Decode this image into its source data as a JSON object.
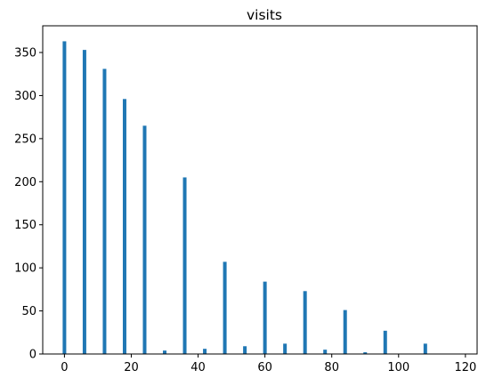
{
  "chart_data": {
    "type": "bar",
    "title": "visits",
    "xlabel": "",
    "ylabel": "",
    "x": [
      0,
      6,
      12,
      18,
      24,
      30,
      36,
      42,
      48,
      54,
      60,
      66,
      72,
      78,
      84,
      90,
      96,
      108
    ],
    "values": [
      363,
      353,
      331,
      296,
      265,
      4,
      205,
      6,
      107,
      9,
      84,
      12,
      73,
      5,
      51,
      2,
      27,
      12
    ],
    "xlim": [
      -6.5,
      123.5
    ],
    "ylim": [
      0,
      381
    ],
    "xticks": [
      0,
      20,
      40,
      60,
      80,
      100,
      120
    ],
    "yticks": [
      0,
      50,
      100,
      150,
      200,
      250,
      300,
      350
    ],
    "bar_color": "#1f77b4",
    "grid": false,
    "legend": "none"
  }
}
